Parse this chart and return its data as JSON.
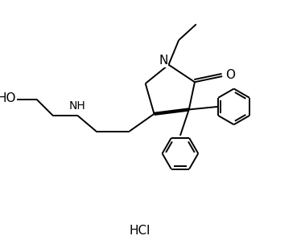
{
  "background_color": "#ffffff",
  "line_color": "#000000",
  "line_width": 1.4,
  "font_size": 10,
  "figsize": [
    3.74,
    3.09
  ],
  "dpi": 100,
  "xlim": [
    0,
    10
  ],
  "ylim": [
    0,
    8.5
  ]
}
